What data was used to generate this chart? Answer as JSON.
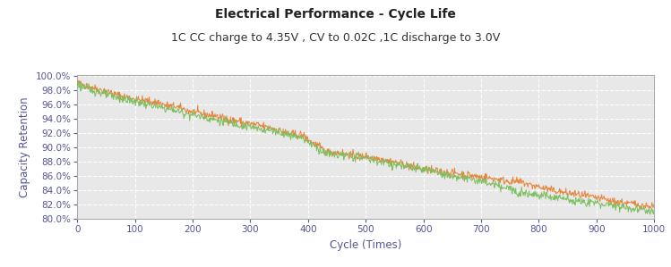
{
  "title": "Electrical Performance - Cycle Life",
  "subtitle": "1C CC charge to 4.35V , CV to 0.02C ,1C discharge to 3.0V",
  "xlabel": "Cycle (Times)",
  "ylabel": "Capacity Retention",
  "xlim": [
    0,
    1000
  ],
  "ylim": [
    0.8,
    1.002
  ],
  "yticks": [
    0.8,
    0.82,
    0.84,
    0.86,
    0.88,
    0.9,
    0.92,
    0.94,
    0.96,
    0.98,
    1.0
  ],
  "xticks": [
    0,
    100,
    200,
    300,
    400,
    500,
    600,
    700,
    800,
    900,
    1000
  ],
  "color_orange": "#E8833A",
  "color_green": "#7BBF5E",
  "title_fontsize": 10,
  "subtitle_fontsize": 9,
  "axis_fontsize": 8.5,
  "tick_fontsize": 7.5,
  "n_cycles": 1001,
  "seed": 42,
  "background_color": "#ffffff",
  "plot_bg_color": "#e8e8e8",
  "grid_color": "#ffffff",
  "border_color": "#888888"
}
